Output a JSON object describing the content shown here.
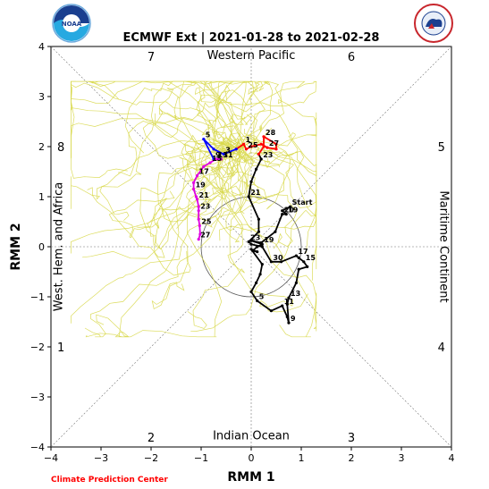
{
  "logos": {
    "left": "NOAA",
    "right": "NATIONAL WEATHER SERVICE"
  },
  "credit": "Climate Prediction Center",
  "chart_data": {
    "type": "line",
    "title": "ECMWF Ext | 2021-01-28 to 2021-02-28",
    "xlabel": "RMM 1",
    "ylabel": "RMM 2",
    "xlim": [
      -4,
      4
    ],
    "ylim": [
      -4,
      4
    ],
    "xticks": [
      "−4",
      "−3",
      "−2",
      "−1",
      "0",
      "1",
      "2",
      "3",
      "4"
    ],
    "yticks": [
      "−4",
      "−3",
      "−2",
      "−1",
      "0",
      "1",
      "2",
      "3",
      "4"
    ],
    "phase_numbers": [
      {
        "label": "1",
        "x": -3.8,
        "y": -2.0
      },
      {
        "label": "2",
        "x": -2.0,
        "y": -3.8
      },
      {
        "label": "3",
        "x": 2.0,
        "y": -3.8
      },
      {
        "label": "4",
        "x": 3.8,
        "y": -2.0
      },
      {
        "label": "5",
        "x": 3.8,
        "y": 2.0
      },
      {
        "label": "6",
        "x": 2.0,
        "y": 3.8
      },
      {
        "label": "7",
        "x": -2.0,
        "y": 3.8
      },
      {
        "label": "8",
        "x": -3.8,
        "y": 2.0
      }
    ],
    "region_labels": [
      {
        "label": "Western Pacific",
        "side": "top"
      },
      {
        "label": "Indian Ocean",
        "side": "bottom"
      },
      {
        "label": "West. Hem. and Africa",
        "side": "left"
      },
      {
        "label": "Maritime Continent",
        "side": "right"
      }
    ],
    "unit_circle_radius": 1,
    "observed": {
      "color": "#000000",
      "points": [
        {
          "x": 0.78,
          "y": 0.8,
          "label": "Start"
        },
        {
          "x": 0.62,
          "y": 0.72
        },
        {
          "x": 0.7,
          "y": 0.65,
          "label": "19"
        },
        {
          "x": 0.62,
          "y": 0.65,
          "label": "20"
        },
        {
          "x": 0.48,
          "y": 0.3
        },
        {
          "x": 0.2,
          "y": 0.08
        },
        {
          "x": 0.0,
          "y": 0.12
        },
        {
          "x": 0.22,
          "y": 0.05,
          "label": "19"
        },
        {
          "x": 0.12,
          "y": 0.0
        },
        {
          "x": 0.03,
          "y": -0.08
        },
        {
          "x": 0.12,
          "y": -0.1
        },
        {
          "x": 0.0,
          "y": -0.05
        },
        {
          "x": 0.22,
          "y": -0.35
        },
        {
          "x": 0.18,
          "y": -0.55
        },
        {
          "x": 0.1,
          "y": -0.72
        },
        {
          "x": 0.0,
          "y": -0.9
        },
        {
          "x": 0.12,
          "y": -1.08,
          "label": "5"
        },
        {
          "x": 0.4,
          "y": -1.28
        },
        {
          "x": 0.62,
          "y": -1.18,
          "label": "11"
        },
        {
          "x": 0.72,
          "y": -1.4
        },
        {
          "x": 0.75,
          "y": -1.52,
          "label": "9"
        },
        {
          "x": 0.72,
          "y": -1.15
        },
        {
          "x": 0.75,
          "y": -1.02,
          "label": "13"
        },
        {
          "x": 0.9,
          "y": -0.72
        },
        {
          "x": 0.95,
          "y": -0.45
        },
        {
          "x": 1.12,
          "y": -0.4
        },
        {
          "x": 1.05,
          "y": -0.3,
          "label": "15"
        },
        {
          "x": 0.95,
          "y": -0.22
        },
        {
          "x": 0.9,
          "y": -0.18,
          "label": "17"
        },
        {
          "x": 0.6,
          "y": -0.3
        },
        {
          "x": 0.4,
          "y": -0.3,
          "label": "30"
        },
        {
          "x": 0.22,
          "y": 0.0
        },
        {
          "x": 0.0,
          "y": 0.05
        },
        {
          "x": -0.05,
          "y": 0.1,
          "label": "23"
        },
        {
          "x": 0.15,
          "y": 0.3
        },
        {
          "x": 0.15,
          "y": 0.55
        },
        {
          "x": -0.05,
          "y": 1.0,
          "label": "21"
        },
        {
          "x": 0.0,
          "y": 1.3
        },
        {
          "x": 0.1,
          "y": 1.55
        },
        {
          "x": 0.2,
          "y": 1.75,
          "label": "23"
        },
        {
          "x": 0.15,
          "y": 1.85
        }
      ]
    },
    "forecasts": [
      {
        "name": "red",
        "color": "#ff0000",
        "points": [
          {
            "x": 0.15,
            "y": 1.85
          },
          {
            "x": 0.25,
            "y": 2.0
          },
          {
            "x": 0.25,
            "y": 2.2,
            "label": "28"
          },
          {
            "x": 0.5,
            "y": 2.05
          },
          {
            "x": 0.5,
            "y": 1.95
          },
          {
            "x": 0.32,
            "y": 1.98,
            "label": "27"
          },
          {
            "x": 0.2,
            "y": 2.05
          },
          {
            "x": 0.0,
            "y": 2.0
          },
          {
            "x": -0.1,
            "y": 1.95,
            "label": "25"
          },
          {
            "x": -0.15,
            "y": 2.05,
            "label": "1"
          },
          {
            "x": -0.3,
            "y": 1.95
          }
        ]
      },
      {
        "name": "blue",
        "color": "#0000ff",
        "points": [
          {
            "x": -0.3,
            "y": 1.95
          },
          {
            "x": -0.55,
            "y": 1.85,
            "label": "3"
          },
          {
            "x": -0.75,
            "y": 1.95
          },
          {
            "x": -0.95,
            "y": 2.15,
            "label": "5"
          },
          {
            "x": -0.75,
            "y": 1.75,
            "label": "9"
          },
          {
            "x": -0.6,
            "y": 1.75,
            "label": "11"
          }
        ]
      },
      {
        "name": "magenta",
        "color": "#e000e0",
        "points": [
          {
            "x": -0.6,
            "y": 1.75
          },
          {
            "x": -0.7,
            "y": 1.75,
            "label": "13"
          },
          {
            "x": -0.82,
            "y": 1.68,
            "label": "15"
          },
          {
            "x": -0.95,
            "y": 1.6
          },
          {
            "x": -1.08,
            "y": 1.42,
            "label": "17"
          },
          {
            "x": -1.15,
            "y": 1.28
          },
          {
            "x": -1.15,
            "y": 1.15,
            "label": "19"
          },
          {
            "x": -1.1,
            "y": 1.0
          },
          {
            "x": -1.08,
            "y": 0.95,
            "label": "21"
          },
          {
            "x": -1.05,
            "y": 0.8
          },
          {
            "x": -1.05,
            "y": 0.72,
            "label": "23"
          },
          {
            "x": -1.05,
            "y": 0.55
          },
          {
            "x": -1.03,
            "y": 0.42,
            "label": "25"
          },
          {
            "x": -1.02,
            "y": 0.25
          },
          {
            "x": -1.05,
            "y": 0.15,
            "label": "27"
          }
        ]
      }
    ],
    "ensemble": {
      "color": "#d8d84a",
      "members": 51
    }
  }
}
